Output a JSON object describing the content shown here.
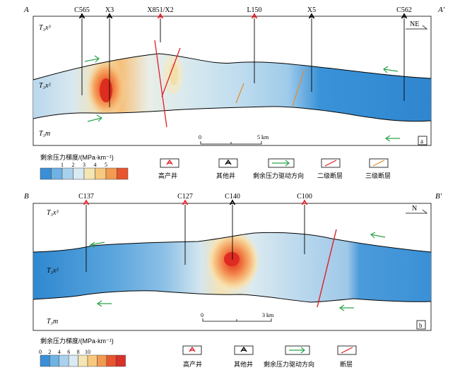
{
  "panel_a": {
    "left_end": "A",
    "right_end": "A′",
    "direction": "NE",
    "tag": "a",
    "strata": {
      "upper": "T₃x³",
      "middle": "T₃x²",
      "lower": "T₃m"
    },
    "scale": {
      "zero": "0",
      "value": "5 km"
    },
    "wells": [
      {
        "label": "C565",
        "kind": "other"
      },
      {
        "label": "X3",
        "kind": "other"
      },
      {
        "label": "X851/X2",
        "kind": "high"
      },
      {
        "label": "L150",
        "kind": "high"
      },
      {
        "label": "X5",
        "kind": "other"
      },
      {
        "label": "C562",
        "kind": "other"
      }
    ],
    "legend": {
      "title": "剩余压力梯度/(MPa·km⁻¹)",
      "ticks": [
        "1",
        "2",
        "3",
        "4",
        "5"
      ],
      "colors": [
        "#3a8fd6",
        "#6fb2e4",
        "#a9d1ee",
        "#d9eaf3",
        "#f3e6b3",
        "#f7c97e",
        "#f29a52",
        "#e8552e"
      ],
      "items": {
        "high_well": "高产井",
        "other_well": "其他井",
        "drive_direction": "剩余压力驱动方向",
        "fault_2": "二级断层",
        "fault_3": "三级断层"
      }
    }
  },
  "panel_b": {
    "left_end": "B",
    "right_end": "B′",
    "direction": "N",
    "tag": "b",
    "strata": {
      "upper": "T₃x³",
      "middle": "T₃x²",
      "lower": "T₃m"
    },
    "scale": {
      "zero": "0",
      "value": "3 km"
    },
    "wells": [
      {
        "label": "C137",
        "kind": "high"
      },
      {
        "label": "C127",
        "kind": "high"
      },
      {
        "label": "C140",
        "kind": "other"
      },
      {
        "label": "C100",
        "kind": "high"
      }
    ],
    "legend": {
      "title": "剩余压力梯度/(MPa·km⁻¹)",
      "ticks": [
        "0",
        "2",
        "4",
        "6",
        "8",
        "10"
      ],
      "colors": [
        "#3a8fd6",
        "#6fb2e4",
        "#a9d1ee",
        "#d9eaf3",
        "#f3e6b3",
        "#f7c97e",
        "#f29a52",
        "#e8552e",
        "#d9302a"
      ],
      "items": {
        "high_well": "高产井",
        "other_well": "其他井",
        "drive_direction": "剩余压力驱动方向",
        "fault": "断层"
      }
    }
  }
}
